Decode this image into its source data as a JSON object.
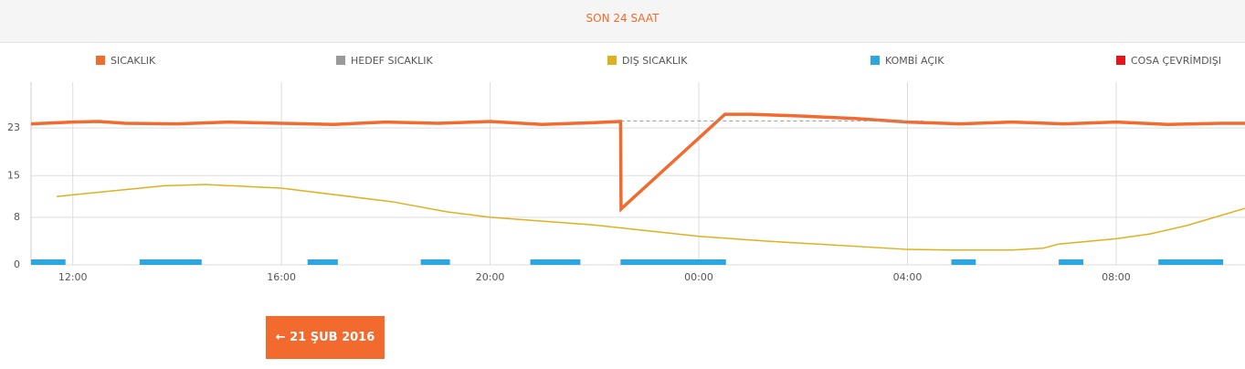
{
  "header": {
    "title": "SON 24 SAAT"
  },
  "chart_data": {
    "type": "line",
    "xlim": [
      11.2,
      34.47
    ],
    "ylim": [
      0,
      30.7
    ],
    "xticks": [
      {
        "value": 12,
        "label": "12:00"
      },
      {
        "value": 16,
        "label": "16:00"
      },
      {
        "value": 20,
        "label": "20:00"
      },
      {
        "value": 24,
        "label": "00:00"
      },
      {
        "value": 28,
        "label": "04:00"
      },
      {
        "value": 32,
        "label": "08:00"
      }
    ],
    "yticks": [
      0,
      8,
      15,
      23
    ],
    "grid": true,
    "series": [
      {
        "name": "SICAKLIK",
        "color": "#f26a2e",
        "x": [
          11.2,
          12,
          12.5,
          13,
          14,
          15,
          16,
          17,
          18,
          19,
          20,
          21,
          22,
          22.5,
          22.51,
          24.5,
          25,
          26,
          27,
          28,
          29,
          30,
          31,
          32,
          33,
          34,
          34.47
        ],
        "values": [
          23.7,
          24.0,
          24.1,
          23.8,
          23.7,
          24.0,
          23.8,
          23.6,
          24.0,
          23.8,
          24.1,
          23.6,
          23.9,
          24.1,
          9.4,
          25.3,
          25.3,
          25.0,
          24.6,
          24.0,
          23.7,
          24.0,
          23.7,
          24.0,
          23.6,
          23.8,
          23.8
        ]
      },
      {
        "name": "HEDEF SICAKLIK",
        "color": "#999999",
        "dashed": true,
        "x": [
          22.5,
          28.3
        ],
        "values": [
          24.2,
          24.2
        ]
      },
      {
        "name": "DIŞ SICAKLIK",
        "color": "#e0b020",
        "x": [
          11.69,
          13.75,
          14.54,
          16,
          18.13,
          19.18,
          20,
          22,
          24,
          25.3,
          28,
          28.8,
          30,
          30.6,
          30.9,
          32,
          32.65,
          33.35,
          34.47
        ],
        "values": [
          11.5,
          13.3,
          13.5,
          12.9,
          10.6,
          8.9,
          8,
          6.7,
          4.8,
          4.0,
          2.6,
          2.5,
          2.5,
          2.8,
          3.5,
          4.4,
          5.2,
          6.6,
          9.5
        ]
      },
      {
        "name": "KOMBİ AÇIK",
        "color": "#2ba6e1",
        "periods": [
          [
            11.2,
            11.86
          ],
          [
            13.28,
            14.47
          ],
          [
            16.5,
            17.08
          ],
          [
            18.67,
            19.23
          ],
          [
            20.77,
            21.73
          ],
          [
            22.5,
            24.52
          ],
          [
            28.84,
            29.31
          ],
          [
            30.9,
            31.37
          ],
          [
            32.81,
            34.05
          ]
        ]
      },
      {
        "name": "COSA ÇEVRİMDIŞI",
        "color": "#e8141b"
      }
    ]
  },
  "button": {
    "label": "← 21 ŞUB 2016"
  }
}
